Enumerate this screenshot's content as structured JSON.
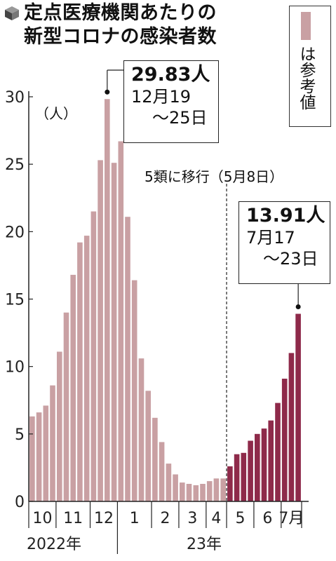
{
  "title": {
    "line1": "定点医療機関あたりの",
    "line2": "新型コロナの感染者数",
    "icon": "cube-icon"
  },
  "legend": {
    "label": "は参考値",
    "color": "#c9a0a3"
  },
  "annotations": {
    "peak": {
      "value": "29.83人",
      "date1": "12月19",
      "date2": "～25日"
    },
    "latest": {
      "value": "13.91人",
      "date1": "7月17",
      "date2": "～23日"
    },
    "event": "5類に移行（5月8日）"
  },
  "chart_data": {
    "type": "bar",
    "yunit": "（人）",
    "ylim": [
      0,
      30
    ],
    "yticks": [
      0,
      5,
      10,
      15,
      20,
      25,
      30
    ],
    "month_labels": [
      "10",
      "11",
      "12",
      "1",
      "2",
      "3",
      "4",
      "5",
      "6",
      "7月"
    ],
    "year_labels": [
      "2022年",
      "23年"
    ],
    "series": [
      {
        "values": [
          6.3,
          6.6,
          7.1,
          8.6,
          11.1,
          14.0,
          16.8,
          19.2,
          19.7,
          21.5,
          25.3,
          29.83,
          25.1,
          26.7,
          21.1,
          16.4,
          10.6,
          8.2,
          6.2,
          4.4,
          2.8,
          2.0,
          1.4,
          1.3,
          1.2,
          1.3,
          1.5,
          1.7,
          1.7
        ],
        "status": "reference",
        "color": "#c9a0a3"
      },
      {
        "values": [
          2.6,
          3.5,
          3.6,
          4.5,
          5.0,
          5.4,
          6.0,
          7.3,
          9.1,
          11.0,
          13.91
        ],
        "status": "confirmed",
        "color": "#8e2a4a"
      }
    ],
    "grid": false
  }
}
